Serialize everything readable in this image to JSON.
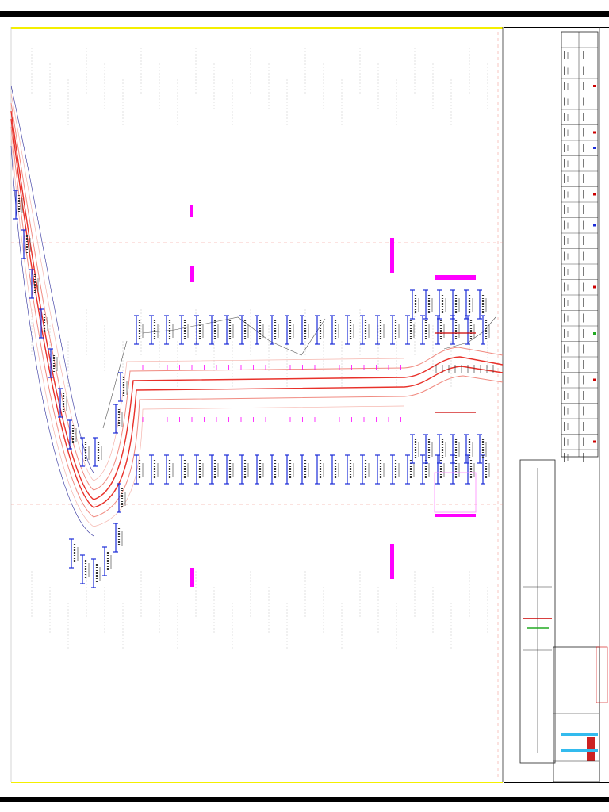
{
  "drawing": {
    "colors": {
      "frame": "#000000",
      "border_yellow": "#f4ef00",
      "road_red": "#e8312a",
      "road_pink": "#f08a80",
      "station_blue": "#1a2bd8",
      "annotation_magenta": "#ff00ff",
      "dim_gray": "#777777",
      "legend_red": "#cc0000",
      "legend_green": "#22aa22",
      "legend_cyan": "#33bbee"
    },
    "panels": {
      "legend_table_rows": 27,
      "section_count_top": 24,
      "section_count_bottom": 24,
      "section_count_curve": 20
    }
  }
}
